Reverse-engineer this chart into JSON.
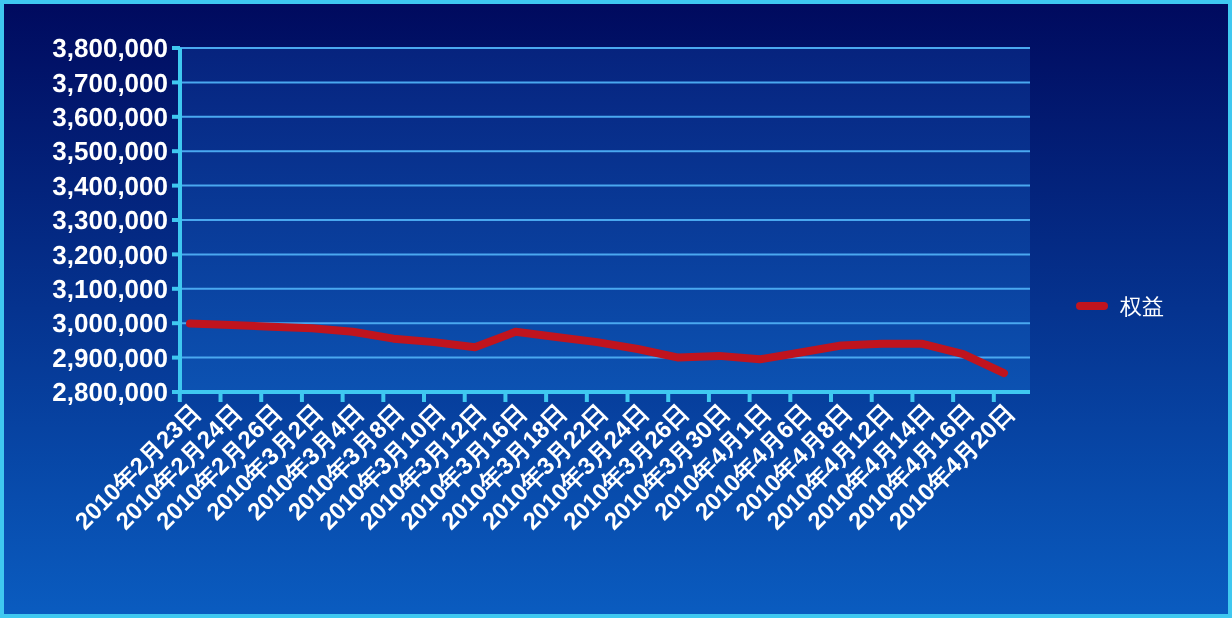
{
  "chart_data": {
    "type": "line",
    "categories": [
      "2010年2月23日",
      "2010年2月24日",
      "2010年2月26日",
      "2010年3月2日",
      "2010年3月4日",
      "2010年3月8日",
      "2010年3月10日",
      "2010年3月12日",
      "2010年3月16日",
      "2010年3月18日",
      "2010年3月22日",
      "2010年3月24日",
      "2010年3月26日",
      "2010年3月30日",
      "2010年4月1日",
      "2010年4月6日",
      "2010年4月8日",
      "2010年4月12日",
      "2010年4月14日",
      "2010年4月16日",
      "2010年4月20日"
    ],
    "series": [
      {
        "name": "权益",
        "color": "#c0141e",
        "values": [
          2999000,
          2995000,
          2990000,
          2985000,
          2975000,
          2955000,
          2945000,
          2930000,
          2975000,
          2960000,
          2945000,
          2925000,
          2900000,
          2905000,
          2895000,
          2915000,
          2935000,
          2940000,
          2940000,
          2910000,
          2855000
        ]
      }
    ],
    "ylim": [
      2800000,
      3800000
    ],
    "yticks": [
      {
        "value": 2800000,
        "label": "2,800,000"
      },
      {
        "value": 2900000,
        "label": "2,900,000"
      },
      {
        "value": 3000000,
        "label": "3,000,000"
      },
      {
        "value": 3100000,
        "label": "3,100,000"
      },
      {
        "value": 3200000,
        "label": "3,200,000"
      },
      {
        "value": 3300000,
        "label": "3,300,000"
      },
      {
        "value": 3400000,
        "label": "3,400,000"
      },
      {
        "value": 3500000,
        "label": "3,500,000"
      },
      {
        "value": 3600000,
        "label": "3,600,000"
      },
      {
        "value": 3700000,
        "label": "3,700,000"
      },
      {
        "value": 3800000,
        "label": "3,800,000"
      }
    ],
    "grid": "y",
    "legend": "right"
  }
}
